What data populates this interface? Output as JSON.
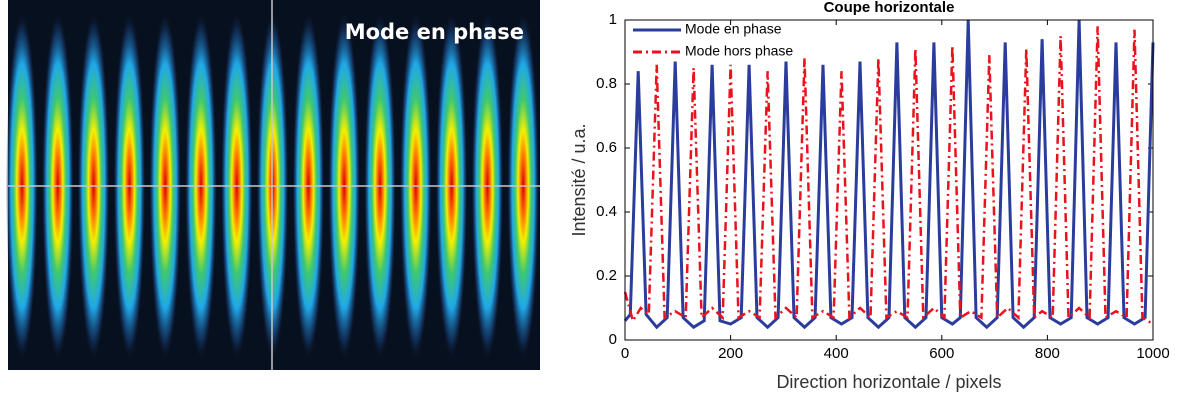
{
  "image": {
    "label": "Mode en phase"
  },
  "chart_data": {
    "type": "line",
    "title": "Coupe horizontale",
    "xlabel": "Direction horizontale / pixels",
    "ylabel": "Intensité / u.a.",
    "xlim": [
      0,
      1000
    ],
    "xticks": [
      0,
      200,
      400,
      600,
      800,
      1000
    ],
    "ylim": [
      0,
      1
    ],
    "yticks": [
      0,
      0.2,
      0.4,
      0.6,
      0.8,
      1
    ],
    "legend": "upper left",
    "series": [
      {
        "name": "Mode en phase",
        "color": "#2b3d9c",
        "dash": "solid",
        "x": [
          0,
          10,
          25,
          40,
          60,
          80,
          95,
          110,
          130,
          150,
          165,
          180,
          200,
          220,
          235,
          250,
          270,
          290,
          305,
          320,
          340,
          360,
          375,
          390,
          410,
          430,
          445,
          460,
          480,
          500,
          515,
          530,
          550,
          570,
          585,
          600,
          620,
          635,
          650,
          665,
          685,
          705,
          720,
          735,
          755,
          775,
          790,
          805,
          825,
          845,
          860,
          875,
          895,
          915,
          930,
          945,
          965,
          985,
          1000
        ],
        "values": [
          0.06,
          0.08,
          0.84,
          0.08,
          0.04,
          0.07,
          0.87,
          0.07,
          0.04,
          0.06,
          0.86,
          0.06,
          0.05,
          0.07,
          0.86,
          0.07,
          0.04,
          0.07,
          0.87,
          0.07,
          0.04,
          0.07,
          0.86,
          0.07,
          0.05,
          0.07,
          0.87,
          0.07,
          0.04,
          0.07,
          0.93,
          0.07,
          0.04,
          0.07,
          0.93,
          0.07,
          0.05,
          0.07,
          1.0,
          0.07,
          0.04,
          0.07,
          0.93,
          0.07,
          0.04,
          0.07,
          0.94,
          0.07,
          0.05,
          0.07,
          1.0,
          0.07,
          0.05,
          0.07,
          0.93,
          0.07,
          0.05,
          0.07,
          0.93
        ]
      },
      {
        "name": "Mode hors phase",
        "color": "#e8131c",
        "dash": "dashdot",
        "x": [
          0,
          15,
          30,
          45,
          60,
          75,
          95,
          115,
          130,
          145,
          165,
          185,
          200,
          215,
          235,
          255,
          270,
          285,
          305,
          325,
          340,
          355,
          375,
          395,
          410,
          425,
          445,
          465,
          480,
          495,
          515,
          535,
          550,
          565,
          585,
          605,
          620,
          635,
          655,
          675,
          690,
          705,
          725,
          745,
          760,
          775,
          790,
          810,
          825,
          840,
          860,
          880,
          895,
          910,
          930,
          950,
          965,
          980,
          1000
        ],
        "values": [
          0.15,
          0.06,
          0.1,
          0.08,
          0.86,
          0.07,
          0.09,
          0.07,
          0.85,
          0.07,
          0.1,
          0.07,
          0.86,
          0.07,
          0.09,
          0.07,
          0.84,
          0.07,
          0.1,
          0.07,
          0.88,
          0.07,
          0.09,
          0.07,
          0.84,
          0.07,
          0.1,
          0.07,
          0.88,
          0.07,
          0.09,
          0.07,
          0.91,
          0.07,
          0.1,
          0.07,
          0.92,
          0.07,
          0.09,
          0.07,
          0.89,
          0.07,
          0.1,
          0.07,
          0.91,
          0.07,
          0.09,
          0.07,
          0.95,
          0.07,
          0.1,
          0.07,
          0.98,
          0.07,
          0.09,
          0.07,
          0.97,
          0.07,
          0.05
        ]
      }
    ]
  }
}
